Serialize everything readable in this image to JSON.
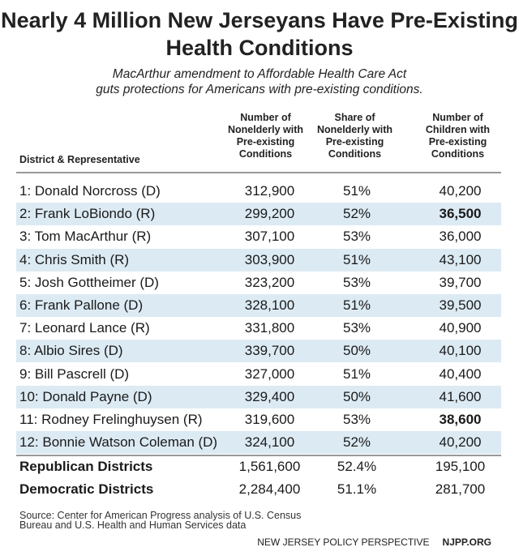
{
  "title": "Nearly 4 Million New Jerseyans Have Pre-Existing Health Conditions",
  "subtitle_line1": "MacArthur amendment to Affordable Health Care Act",
  "subtitle_line2": "guts protections for Americans with pre-existing conditions.",
  "columns": {
    "district": "District & Representative",
    "nonelderly_number": [
      "Number of",
      "Nonelderly with",
      "Pre-existing",
      "Conditions"
    ],
    "nonelderly_share": [
      "Share of",
      "Nonelderly with",
      "Pre-existing",
      "Conditions"
    ],
    "children_number": [
      "Number of",
      "Children with",
      "Pre-existing",
      "Conditions"
    ]
  },
  "rows": [
    {
      "district": "1: Donald Norcross (D)",
      "nonelderly": "312,900",
      "share": "51%",
      "children": "40,200",
      "children_bold": false
    },
    {
      "district": "2: Frank LoBiondo (R)",
      "nonelderly": "299,200",
      "share": "52%",
      "children": "36,500",
      "children_bold": true
    },
    {
      "district": "3: Tom MacArthur (R)",
      "nonelderly": "307,100",
      "share": "53%",
      "children": "36,000",
      "children_bold": false
    },
    {
      "district": "4: Chris Smith (R)",
      "nonelderly": "303,900",
      "share": "51%",
      "children": "43,100",
      "children_bold": false
    },
    {
      "district": "5: Josh Gottheimer (D)",
      "nonelderly": "323,200",
      "share": "53%",
      "children": "39,700",
      "children_bold": false
    },
    {
      "district": "6: Frank Pallone (D)",
      "nonelderly": "328,100",
      "share": "51%",
      "children": "39,500",
      "children_bold": false
    },
    {
      "district": "7: Leonard Lance (R)",
      "nonelderly": "331,800",
      "share": "53%",
      "children": "40,900",
      "children_bold": false
    },
    {
      "district": "8: Albio Sires (D)",
      "nonelderly": "339,700",
      "share": "50%",
      "children": "40,100",
      "children_bold": false
    },
    {
      "district": "9: Bill Pascrell (D)",
      "nonelderly": "327,000",
      "share": "51%",
      "children": "40,400",
      "children_bold": false
    },
    {
      "district": "10: Donald Payne (D)",
      "nonelderly": "329,400",
      "share": "50%",
      "children": "41,600",
      "children_bold": false
    },
    {
      "district": "11: Rodney Frelinghuysen (R)",
      "nonelderly": "319,600",
      "share": "53%",
      "children": "38,600",
      "children_bold": true
    },
    {
      "district": "12: Bonnie Watson Coleman (D)",
      "nonelderly": "324,100",
      "share": "52%",
      "children": "40,200",
      "children_bold": false
    }
  ],
  "totals": [
    {
      "district": "Republican Districts",
      "nonelderly": "1,561,600",
      "share": "52.4%",
      "children": "195,100"
    },
    {
      "district": "Democratic Districts",
      "nonelderly": "2,284,400",
      "share": "51.1%",
      "children": "281,700"
    }
  ],
  "source_line1": "Source: Center for American Progress analysis of U.S. Census",
  "source_line2": "Bureau and U.S. Health and Human Services data",
  "footer_org": "NEW JERSEY POLICY PERSPECTIVE",
  "footer_url": "NJPP.ORG",
  "colors": {
    "stripe": "#dceaf3",
    "rule": "#999999"
  }
}
